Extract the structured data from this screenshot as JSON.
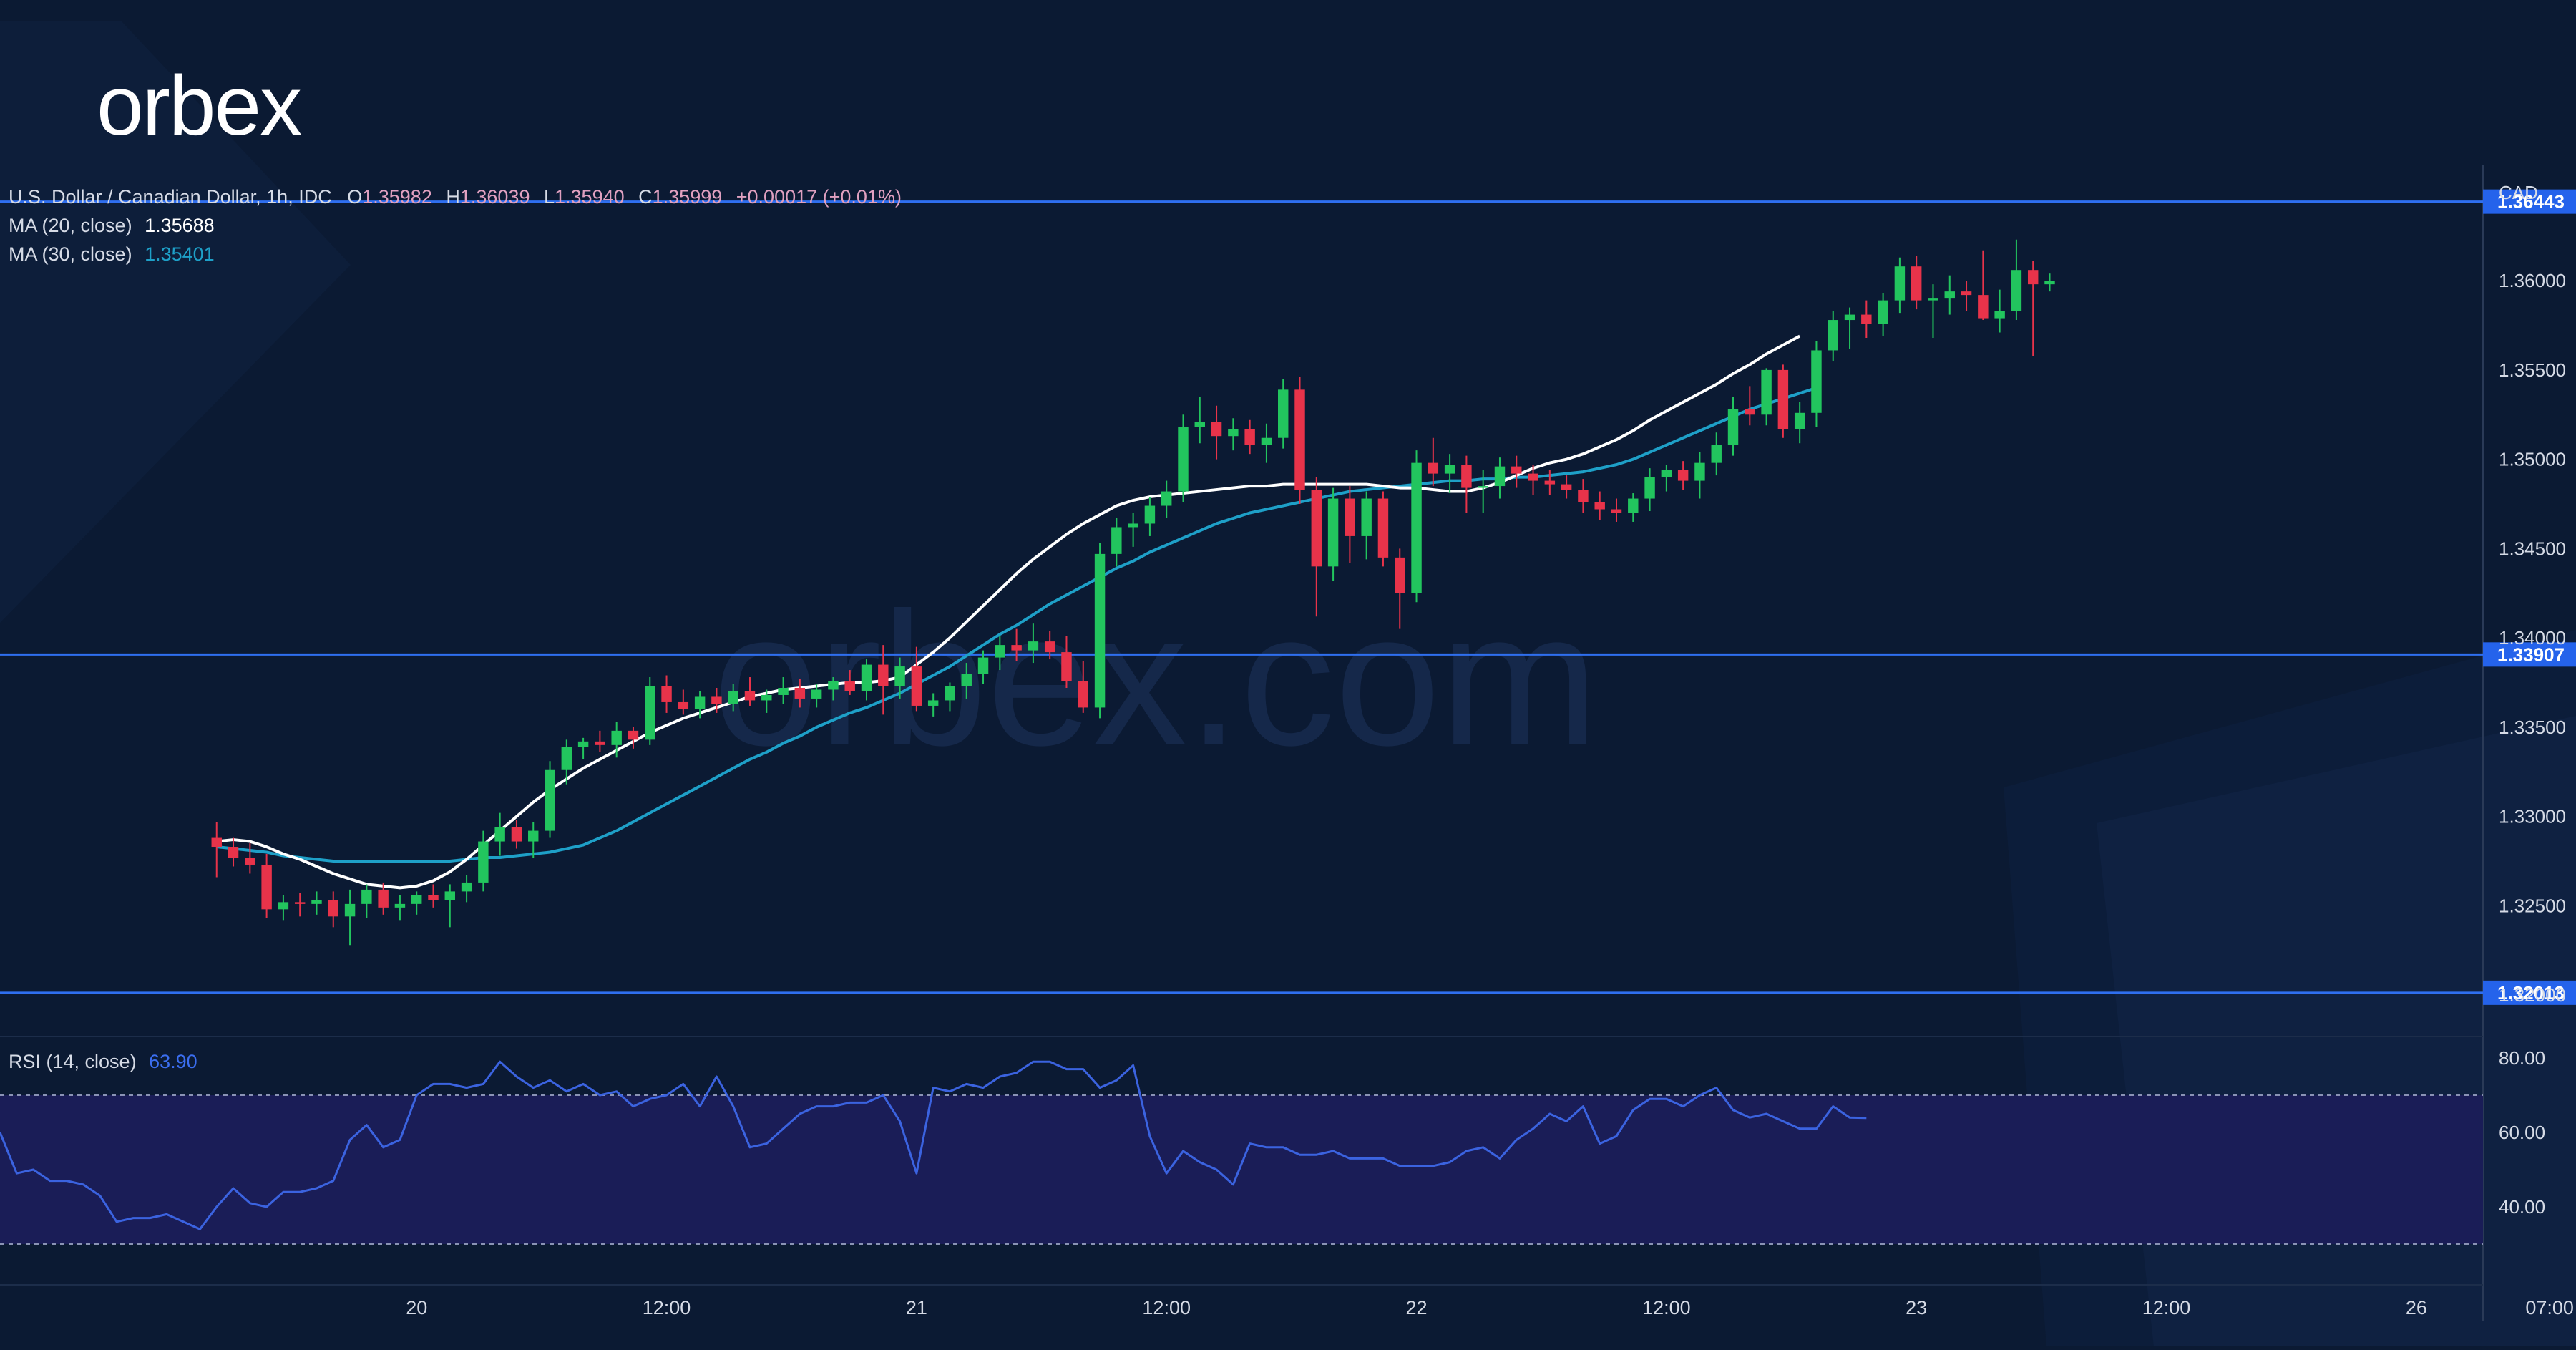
{
  "brand": {
    "logo_text": "orbex",
    "watermark_text": "orbex.com"
  },
  "legend": {
    "title": "U.S. Dollar / Canadian Dollar, 1h, IDC",
    "ohlc": [
      {
        "key": "O",
        "value": "1.35982"
      },
      {
        "key": "H",
        "value": "1.36039"
      },
      {
        "key": "L",
        "value": "1.35940"
      },
      {
        "key": "C",
        "value": "1.35999"
      }
    ],
    "change": "+0.00017 (+0.01%)",
    "ma20_label": "MA (20, close)",
    "ma20_value": "1.35688",
    "ma30_label": "MA (30, close)",
    "ma30_value": "1.35401",
    "rsi_label": "RSI (14, close)",
    "rsi_value": "63.90"
  },
  "colors": {
    "background": "#0b1a33",
    "up": "#22c55e",
    "down": "#e8334a",
    "ma20": "#ffffff",
    "ma30": "#1ea0c8",
    "level_line": "#2f6ff0",
    "level_badge": "#2563eb",
    "rsi_line": "#3b63e0",
    "rsi_band": "#1a1d57",
    "axis_text": "#d6dbe6",
    "legend_text": "#d6dbe6",
    "value_text": "#e0a0c0"
  },
  "chart_data": [
    {
      "type": "candlestick",
      "title": "U.S. Dollar / Canadian Dollar, 1h, IDC",
      "y_axis_label": "CAD",
      "ylim": [
        1.318,
        1.3665
      ],
      "y_ticks": [
        "1.32000",
        "1.32500",
        "1.33000",
        "1.33500",
        "1.34000",
        "1.34500",
        "1.35000",
        "1.35500",
        "1.36000"
      ],
      "x_range": [
        -13,
        136
      ],
      "x_ticks": [
        {
          "label": "20",
          "x": 12
        },
        {
          "label": "12:00",
          "x": 27
        },
        {
          "label": "21",
          "x": 42
        },
        {
          "label": "12:00",
          "x": 57
        },
        {
          "label": "22",
          "x": 72
        },
        {
          "label": "12:00",
          "x": 87
        },
        {
          "label": "23",
          "x": 102
        },
        {
          "label": "12:00",
          "x": 117
        },
        {
          "label": "26",
          "x": 132
        },
        {
          "label": "07:00",
          "x": 140
        }
      ],
      "levels": [
        {
          "price": 1.36443,
          "label": "1.36443"
        },
        {
          "price": 1.33907,
          "label": "1.33907"
        },
        {
          "price": 1.32013,
          "label": "1.32013"
        }
      ],
      "candles": [
        [
          1.3288,
          1.3297,
          1.3266,
          1.3283
        ],
        [
          1.3283,
          1.3288,
          1.3272,
          1.3277
        ],
        [
          1.3277,
          1.3285,
          1.3268,
          1.3273
        ],
        [
          1.3273,
          1.3279,
          1.3243,
          1.3248
        ],
        [
          1.3248,
          1.3256,
          1.3242,
          1.3252
        ],
        [
          1.3252,
          1.3257,
          1.3244,
          1.3251
        ],
        [
          1.3251,
          1.3258,
          1.3245,
          1.3253
        ],
        [
          1.3253,
          1.3258,
          1.3238,
          1.3244
        ],
        [
          1.3244,
          1.3259,
          1.3228,
          1.3251
        ],
        [
          1.3251,
          1.3262,
          1.3243,
          1.3259
        ],
        [
          1.3259,
          1.3263,
          1.3245,
          1.3249
        ],
        [
          1.3249,
          1.3256,
          1.3242,
          1.3251
        ],
        [
          1.3251,
          1.3258,
          1.3245,
          1.3256
        ],
        [
          1.3256,
          1.3262,
          1.3249,
          1.3253
        ],
        [
          1.3253,
          1.3262,
          1.3238,
          1.3258
        ],
        [
          1.3258,
          1.3267,
          1.3252,
          1.3263
        ],
        [
          1.3263,
          1.3292,
          1.3258,
          1.3286
        ],
        [
          1.3286,
          1.3302,
          1.3278,
          1.3294
        ],
        [
          1.3294,
          1.3298,
          1.3282,
          1.3286
        ],
        [
          1.3286,
          1.3297,
          1.3277,
          1.3292
        ],
        [
          1.3292,
          1.3331,
          1.3288,
          1.3326
        ],
        [
          1.3326,
          1.3343,
          1.3318,
          1.3339
        ],
        [
          1.3339,
          1.3344,
          1.3332,
          1.3342
        ],
        [
          1.3342,
          1.3348,
          1.3336,
          1.334
        ],
        [
          1.334,
          1.3353,
          1.3333,
          1.3348
        ],
        [
          1.3348,
          1.335,
          1.3338,
          1.3343
        ],
        [
          1.3343,
          1.3378,
          1.334,
          1.3373
        ],
        [
          1.3373,
          1.3379,
          1.3358,
          1.3364
        ],
        [
          1.3364,
          1.3371,
          1.3357,
          1.336
        ],
        [
          1.336,
          1.337,
          1.3355,
          1.3367
        ],
        [
          1.3367,
          1.3372,
          1.3358,
          1.3363
        ],
        [
          1.3363,
          1.3374,
          1.3359,
          1.337
        ],
        [
          1.337,
          1.3378,
          1.3362,
          1.3365
        ],
        [
          1.3365,
          1.3371,
          1.3358,
          1.3368
        ],
        [
          1.3368,
          1.3378,
          1.3363,
          1.3372
        ],
        [
          1.3372,
          1.3377,
          1.3361,
          1.3366
        ],
        [
          1.3366,
          1.3374,
          1.3361,
          1.3371
        ],
        [
          1.3371,
          1.3378,
          1.3365,
          1.3376
        ],
        [
          1.3376,
          1.3382,
          1.3368,
          1.337
        ],
        [
          1.337,
          1.3388,
          1.3365,
          1.3385
        ],
        [
          1.3385,
          1.3396,
          1.3357,
          1.3373
        ],
        [
          1.3373,
          1.3389,
          1.3366,
          1.3384
        ],
        [
          1.3384,
          1.3395,
          1.3359,
          1.3362
        ],
        [
          1.3362,
          1.3369,
          1.3356,
          1.3365
        ],
        [
          1.3365,
          1.3375,
          1.3359,
          1.3373
        ],
        [
          1.3373,
          1.3386,
          1.3366,
          1.338
        ],
        [
          1.338,
          1.3393,
          1.3374,
          1.3389
        ],
        [
          1.3389,
          1.3401,
          1.3382,
          1.3396
        ],
        [
          1.3396,
          1.3405,
          1.3387,
          1.3393
        ],
        [
          1.3393,
          1.3408,
          1.3386,
          1.3398
        ],
        [
          1.3398,
          1.3404,
          1.3388,
          1.3392
        ],
        [
          1.3392,
          1.3401,
          1.3372,
          1.3376
        ],
        [
          1.3376,
          1.3387,
          1.3358,
          1.3361
        ],
        [
          1.3361,
          1.3453,
          1.3355,
          1.3447
        ],
        [
          1.3447,
          1.3467,
          1.344,
          1.3462
        ],
        [
          1.3462,
          1.347,
          1.3451,
          1.3464
        ],
        [
          1.3464,
          1.3479,
          1.3457,
          1.3474
        ],
        [
          1.3474,
          1.3488,
          1.3467,
          1.3482
        ],
        [
          1.3482,
          1.3525,
          1.3476,
          1.3518
        ],
        [
          1.3518,
          1.3535,
          1.3509,
          1.3521
        ],
        [
          1.3521,
          1.353,
          1.35,
          1.3513
        ],
        [
          1.3513,
          1.3523,
          1.3505,
          1.3517
        ],
        [
          1.3517,
          1.3522,
          1.3503,
          1.3508
        ],
        [
          1.3508,
          1.352,
          1.3498,
          1.3512
        ],
        [
          1.3512,
          1.3545,
          1.3506,
          1.3539
        ],
        [
          1.3539,
          1.3546,
          1.3475,
          1.3483
        ],
        [
          1.3483,
          1.349,
          1.3412,
          1.344
        ],
        [
          1.344,
          1.3484,
          1.3432,
          1.3478
        ],
        [
          1.3478,
          1.3485,
          1.3442,
          1.3457
        ],
        [
          1.3457,
          1.3482,
          1.3444,
          1.3478
        ],
        [
          1.3478,
          1.3482,
          1.344,
          1.3445
        ],
        [
          1.3445,
          1.345,
          1.3405,
          1.3425
        ],
        [
          1.3425,
          1.3505,
          1.342,
          1.3498
        ],
        [
          1.3498,
          1.3512,
          1.3485,
          1.3492
        ],
        [
          1.3492,
          1.3503,
          1.3481,
          1.3497
        ],
        [
          1.3497,
          1.3502,
          1.347,
          1.3484
        ],
        [
          1.3484,
          1.3494,
          1.347,
          1.3485
        ],
        [
          1.3485,
          1.3501,
          1.3478,
          1.3496
        ],
        [
          1.3496,
          1.3502,
          1.3484,
          1.3492
        ],
        [
          1.3492,
          1.3497,
          1.348,
          1.3488
        ],
        [
          1.3488,
          1.3494,
          1.348,
          1.3486
        ],
        [
          1.3486,
          1.3491,
          1.3478,
          1.3483
        ],
        [
          1.3483,
          1.3489,
          1.347,
          1.3476
        ],
        [
          1.3476,
          1.3482,
          1.3466,
          1.3472
        ],
        [
          1.3472,
          1.3478,
          1.3465,
          1.347
        ],
        [
          1.347,
          1.3481,
          1.3465,
          1.3478
        ],
        [
          1.3478,
          1.3495,
          1.3471,
          1.349
        ],
        [
          1.349,
          1.3497,
          1.3482,
          1.3494
        ],
        [
          1.3494,
          1.3499,
          1.3483,
          1.3488
        ],
        [
          1.3488,
          1.3504,
          1.3478,
          1.3498
        ],
        [
          1.3498,
          1.3515,
          1.3491,
          1.3508
        ],
        [
          1.3508,
          1.3535,
          1.3502,
          1.3528
        ],
        [
          1.3528,
          1.3541,
          1.3519,
          1.3525
        ],
        [
          1.3525,
          1.3551,
          1.3519,
          1.355
        ],
        [
          1.355,
          1.3553,
          1.3512,
          1.3517
        ],
        [
          1.3517,
          1.3532,
          1.3509,
          1.3526
        ],
        [
          1.3526,
          1.3566,
          1.3518,
          1.3561
        ],
        [
          1.3561,
          1.3583,
          1.3555,
          1.3578
        ],
        [
          1.3578,
          1.3585,
          1.3562,
          1.3581
        ],
        [
          1.3581,
          1.3589,
          1.3568,
          1.3576
        ],
        [
          1.3576,
          1.3593,
          1.3569,
          1.3589
        ],
        [
          1.3589,
          1.3613,
          1.3582,
          1.3608
        ],
        [
          1.3608,
          1.3614,
          1.3584,
          1.3589
        ],
        [
          1.3589,
          1.3598,
          1.3568,
          1.359
        ],
        [
          1.359,
          1.3603,
          1.3581,
          1.3594
        ],
        [
          1.3594,
          1.36,
          1.3583,
          1.3592
        ],
        [
          1.3592,
          1.3617,
          1.3578,
          1.3579
        ],
        [
          1.3579,
          1.3595,
          1.3571,
          1.3583
        ],
        [
          1.3583,
          1.3623,
          1.3578,
          1.3606
        ],
        [
          1.3606,
          1.3611,
          1.3558,
          1.3598
        ],
        [
          1.3598,
          1.3604,
          1.3594,
          1.36
        ]
      ],
      "ma20": [
        1.3286,
        1.3287,
        1.3286,
        1.3283,
        1.3279,
        1.3276,
        1.3272,
        1.3268,
        1.3265,
        1.3262,
        1.3261,
        1.326,
        1.3261,
        1.3264,
        1.3269,
        1.3276,
        1.3284,
        1.3292,
        1.33,
        1.3308,
        1.3315,
        1.3321,
        1.3327,
        1.3332,
        1.3337,
        1.3342,
        1.3347,
        1.3351,
        1.3355,
        1.3358,
        1.3361,
        1.3364,
        1.3367,
        1.3369,
        1.3371,
        1.3372,
        1.3373,
        1.3374,
        1.3375,
        1.3375,
        1.3376,
        1.3378,
        1.3385,
        1.3392,
        1.34,
        1.3409,
        1.3418,
        1.3427,
        1.3436,
        1.3444,
        1.3451,
        1.3458,
        1.3464,
        1.3469,
        1.3474,
        1.3477,
        1.3479,
        1.348,
        1.3481,
        1.3482,
        1.3483,
        1.3484,
        1.3485,
        1.3485,
        1.3486,
        1.3486,
        1.3486,
        1.3486,
        1.3486,
        1.3486,
        1.3485,
        1.3484,
        1.3484,
        1.3483,
        1.3482,
        1.3482,
        1.3484,
        1.3487,
        1.3491,
        1.3495,
        1.3498,
        1.35,
        1.3503,
        1.3507,
        1.3511,
        1.3516,
        1.3522,
        1.3527,
        1.3532,
        1.3537,
        1.3542,
        1.3548,
        1.3553,
        1.3559,
        1.3564,
        1.3569
      ],
      "ma30": [
        1.3283,
        1.3282,
        1.3281,
        1.328,
        1.3278,
        1.3277,
        1.3276,
        1.3275,
        1.3275,
        1.3275,
        1.3275,
        1.3275,
        1.3275,
        1.3275,
        1.3275,
        1.3276,
        1.3277,
        1.3277,
        1.3278,
        1.3279,
        1.328,
        1.3282,
        1.3284,
        1.3288,
        1.3292,
        1.3297,
        1.3302,
        1.3307,
        1.3312,
        1.3317,
        1.3322,
        1.3327,
        1.3332,
        1.3336,
        1.3341,
        1.3345,
        1.335,
        1.3354,
        1.3358,
        1.3361,
        1.3365,
        1.3369,
        1.3374,
        1.3379,
        1.3384,
        1.339,
        1.3396,
        1.3402,
        1.3407,
        1.3413,
        1.3419,
        1.3424,
        1.3429,
        1.3434,
        1.3439,
        1.3443,
        1.3448,
        1.3452,
        1.3456,
        1.346,
        1.3464,
        1.3467,
        1.347,
        1.3472,
        1.3474,
        1.3476,
        1.3478,
        1.348,
        1.3482,
        1.3483,
        1.3484,
        1.3485,
        1.3486,
        1.3487,
        1.3488,
        1.3488,
        1.3489,
        1.3489,
        1.349,
        1.349,
        1.3491,
        1.3492,
        1.3493,
        1.3495,
        1.3497,
        1.35,
        1.3504,
        1.3508,
        1.3512,
        1.3516,
        1.352,
        1.3524,
        1.3528,
        1.3531,
        1.3534,
        1.3537,
        1.354
      ]
    },
    {
      "type": "line",
      "title": "RSI (14, close)",
      "ylim": [
        20,
        85
      ],
      "y_ticks": [
        "40.00",
        "60.00",
        "80.00"
      ],
      "bands": [
        30,
        70
      ],
      "x_start": -13,
      "values": [
        60,
        49,
        50,
        47,
        47,
        46,
        43,
        36,
        37,
        37,
        38,
        36,
        34,
        40,
        45,
        41,
        40,
        44,
        44,
        45,
        47,
        58,
        62,
        56,
        58,
        70,
        73,
        73,
        72,
        73,
        79,
        75,
        72,
        74,
        71,
        73,
        70,
        71,
        67,
        69,
        70,
        73,
        67,
        75,
        67,
        56,
        57,
        61,
        65,
        67,
        67,
        68,
        68,
        70,
        63,
        49,
        72,
        71,
        73,
        72,
        75,
        76,
        79,
        79,
        77,
        77,
        72,
        74,
        78,
        59,
        49,
        55,
        52,
        50,
        46,
        57,
        56,
        56,
        54,
        54,
        55,
        53,
        53,
        53,
        51,
        51,
        51,
        52,
        55,
        56,
        53,
        58,
        61,
        65,
        63,
        67,
        57,
        59,
        66,
        69,
        69,
        67,
        70,
        72,
        66,
        64,
        65,
        63,
        61,
        61,
        67,
        64,
        63.9
      ]
    }
  ]
}
